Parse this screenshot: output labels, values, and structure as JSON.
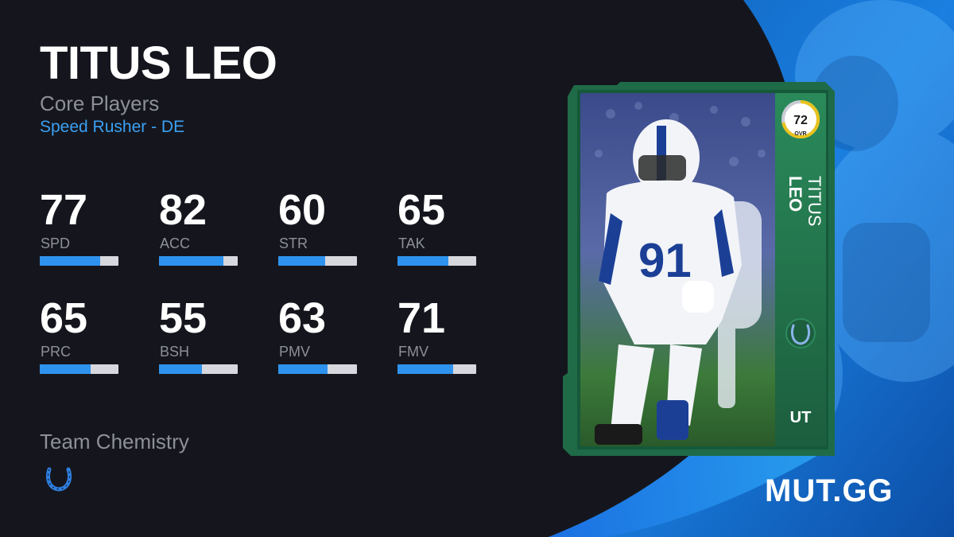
{
  "player": {
    "name": "TITUS LEO",
    "program": "Core Players",
    "archetype": "Speed Rusher - DE"
  },
  "stats": [
    {
      "value": "77",
      "label": "SPD",
      "fraction": 0.77
    },
    {
      "value": "82",
      "label": "ACC",
      "fraction": 0.82
    },
    {
      "value": "60",
      "label": "STR",
      "fraction": 0.6
    },
    {
      "value": "65",
      "label": "TAK",
      "fraction": 0.65
    },
    {
      "value": "65",
      "label": "PRC",
      "fraction": 0.65
    },
    {
      "value": "55",
      "label": "BSH",
      "fraction": 0.55
    },
    {
      "value": "63",
      "label": "PMV",
      "fraction": 0.63
    },
    {
      "value": "71",
      "label": "FMV",
      "fraction": 0.71
    }
  ],
  "chemistry": {
    "title": "Team Chemistry",
    "icon": "colts-horseshoe-icon"
  },
  "card": {
    "ovr": "72",
    "ovr_label": "OVR",
    "ovr_fraction": 0.72,
    "first_name": "TITUS",
    "last_name": "LEO",
    "badge": "UT",
    "team_icon": "colts-horseshoe-icon",
    "jersey_number": "91"
  },
  "brand": {
    "logo": "MUT.GG"
  },
  "colors": {
    "background": "#15161d",
    "accent_blue": "#2e93ee",
    "card_green": "#1f6b47",
    "ovr_ring": "#e9c21b"
  }
}
